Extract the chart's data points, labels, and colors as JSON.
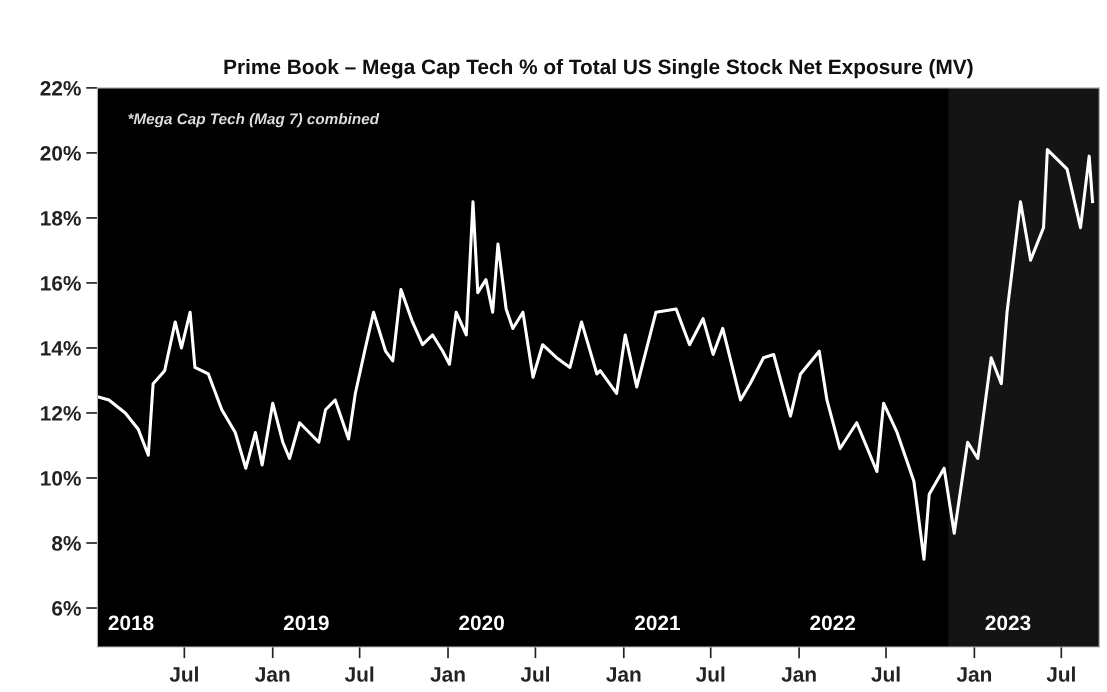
{
  "chart_data": {
    "type": "line",
    "title": "Prime Book – Mega Cap Tech % of Total US Single Stock Net Exposure (MV)",
    "x": [
      "2018-01-01",
      "2018-01-25",
      "2018-02-28",
      "2018-03-27",
      "2018-04-17",
      "2018-04-27",
      "2018-05-21",
      "2018-06-12",
      "2018-06-25",
      "2018-07-13",
      "2018-07-23",
      "2018-08-20",
      "2018-09-17",
      "2018-10-15",
      "2018-11-06",
      "2018-11-26",
      "2018-12-10",
      "2019-01-01",
      "2019-01-22",
      "2019-02-05",
      "2019-02-26",
      "2019-04-07",
      "2019-04-21",
      "2019-05-11",
      "2019-06-08",
      "2019-06-22",
      "2019-07-13",
      "2019-07-30",
      "2019-08-24",
      "2019-09-08",
      "2019-09-25",
      "2019-10-19",
      "2019-11-09",
      "2019-11-30",
      "2019-12-21",
      "2020-01-04",
      "2020-01-18",
      "2020-02-08",
      "2020-02-22",
      "2020-03-03",
      "2020-03-20",
      "2020-04-03",
      "2020-04-14",
      "2020-05-01",
      "2020-05-15",
      "2020-06-05",
      "2020-06-26",
      "2020-07-16",
      "2020-08-14",
      "2020-09-11",
      "2020-10-05",
      "2020-11-06",
      "2020-11-13",
      "2020-12-17",
      "2021-01-04",
      "2021-01-28",
      "2021-03-09",
      "2021-04-20",
      "2021-05-18",
      "2021-06-15",
      "2021-07-06",
      "2021-07-26",
      "2021-09-01",
      "2021-09-21",
      "2021-10-19",
      "2021-11-09",
      "2021-12-14",
      "2022-01-04",
      "2022-02-12",
      "2022-02-28",
      "2022-03-27",
      "2022-05-01",
      "2022-06-12",
      "2022-06-26",
      "2022-07-24",
      "2022-08-28",
      "2022-09-18",
      "2022-09-29",
      "2022-10-30",
      "2022-11-20",
      "2022-12-18",
      "2023-01-08",
      "2023-02-05",
      "2023-02-26",
      "2023-03-10",
      "2023-04-07",
      "2023-04-28",
      "2023-05-25",
      "2023-06-02",
      "2023-07-13",
      "2023-08-10",
      "2023-08-28",
      "2023-09-04"
    ],
    "series": [
      {
        "color": "#ffffff",
        "values": [
          12.5,
          12.4,
          12.0,
          11.5,
          10.7,
          12.9,
          13.3,
          14.8,
          14.0,
          15.1,
          13.4,
          13.2,
          12.1,
          11.4,
          10.3,
          11.4,
          10.4,
          12.3,
          11.1,
          10.6,
          11.7,
          11.1,
          12.1,
          12.4,
          11.2,
          12.6,
          14.0,
          15.1,
          13.9,
          13.6,
          15.8,
          14.8,
          14.1,
          14.4,
          13.9,
          13.5,
          15.1,
          14.4,
          18.5,
          15.7,
          16.1,
          15.1,
          17.2,
          15.2,
          14.6,
          15.1,
          13.1,
          14.1,
          13.7,
          13.4,
          14.8,
          13.2,
          13.3,
          12.6,
          14.4,
          12.8,
          15.1,
          15.2,
          14.1,
          14.9,
          13.8,
          14.6,
          12.4,
          12.9,
          13.7,
          13.8,
          11.9,
          13.2,
          13.9,
          12.4,
          10.9,
          11.7,
          10.2,
          12.3,
          11.4,
          9.9,
          7.5,
          9.5,
          10.3,
          8.3,
          11.1,
          10.6,
          13.7,
          12.9,
          15.1,
          18.5,
          16.7,
          17.7,
          20.1,
          19.5,
          17.7,
          19.9,
          18.5
        ]
      }
    ],
    "xlim": [
      "2018-01-01",
      "2023-09-18"
    ],
    "xticks": [
      {
        "value": "2018-07-01",
        "label": "Jul"
      },
      {
        "value": "2019-01-01",
        "label": "Jan"
      },
      {
        "value": "2019-07-01",
        "label": "Jul"
      },
      {
        "value": "2020-01-01",
        "label": "Jan"
      },
      {
        "value": "2020-07-01",
        "label": "Jul"
      },
      {
        "value": "2021-01-01",
        "label": "Jan"
      },
      {
        "value": "2021-07-01",
        "label": "Jul"
      },
      {
        "value": "2022-01-01",
        "label": "Jan"
      },
      {
        "value": "2022-07-01",
        "label": "Jul"
      },
      {
        "value": "2023-01-01",
        "label": "Jan"
      },
      {
        "value": "2023-07-01",
        "label": "Jul"
      }
    ],
    "ylim": [
      4.8,
      22
    ],
    "yticks": [
      {
        "value": 6,
        "label": "6%"
      },
      {
        "value": 8,
        "label": "8%"
      },
      {
        "value": 10,
        "label": "10%"
      },
      {
        "value": 12,
        "label": "12%"
      },
      {
        "value": 14,
        "label": "14%"
      },
      {
        "value": 16,
        "label": "16%"
      },
      {
        "value": 18,
        "label": "18%"
      },
      {
        "value": 20,
        "label": "20%"
      },
      {
        "value": 22,
        "label": "22%"
      }
    ],
    "bands": [
      {
        "axis": "x",
        "from": "2022-11-08",
        "to": "2023-09-18",
        "color": "#141414"
      }
    ],
    "annotations": [
      "*Mega Cap Tech (Mag 7) combined",
      "2018",
      "2019",
      "2020",
      "2021",
      "2022",
      "2023"
    ],
    "grid": false,
    "marker": "none",
    "line_style": "solid"
  }
}
